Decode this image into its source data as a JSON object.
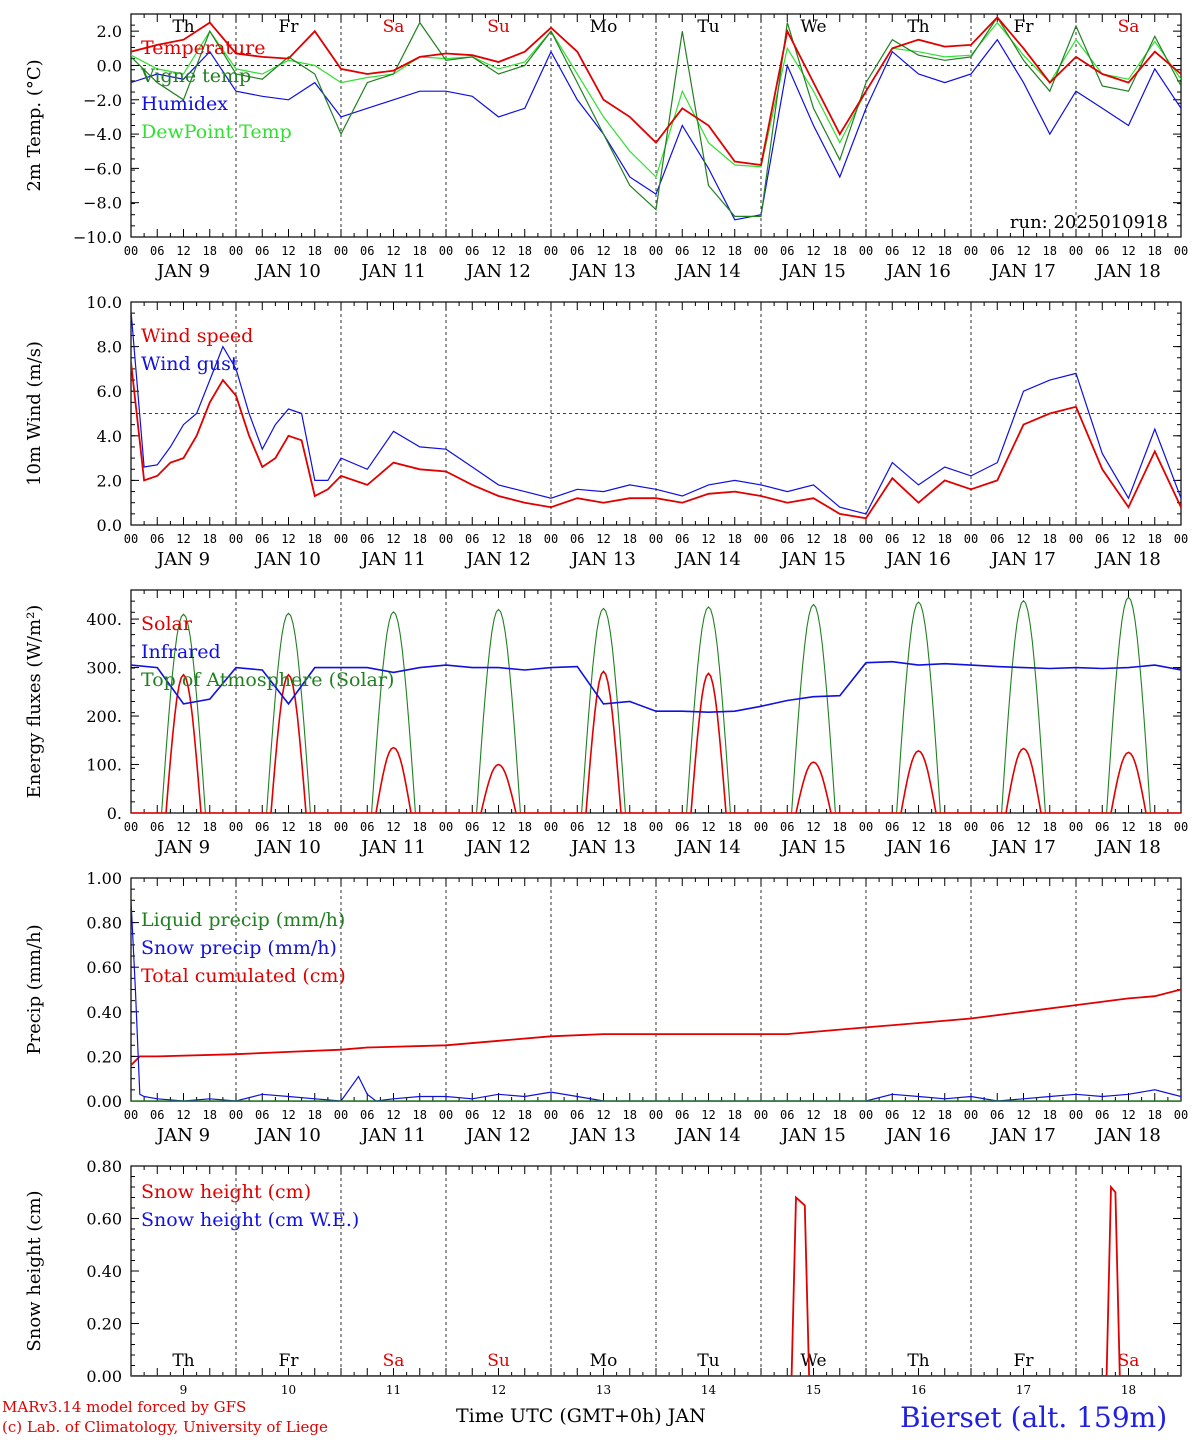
{
  "run_label": "run: 2025010918",
  "station_label": "Bierset (alt. 159m)",
  "credit_line1": "MARv3.14 model forced by GFS",
  "credit_line2": "(c) Lab. of Climatology, University of Liege",
  "xaxis_title": "Time UTC (GMT+0h) JAN",
  "hour_ticks": [
    "00",
    "06",
    "12",
    "18"
  ],
  "day_labels": [
    "JAN  9",
    "JAN 10",
    "JAN 11",
    "JAN 12",
    "JAN 13",
    "JAN 14",
    "JAN 15",
    "JAN 16",
    "JAN 17",
    "JAN 18"
  ],
  "weekdays": [
    "Th",
    "Fr",
    "Sa",
    "Su",
    "Mo",
    "Tu",
    "We",
    "Th",
    "Fr",
    "Sa"
  ],
  "weekday_colors": [
    "#000000",
    "#000000",
    "#e00000",
    "#e00000",
    "#000000",
    "#000000",
    "#000000",
    "#000000",
    "#000000",
    "#e00000"
  ],
  "day_numbers": [
    "9",
    "10",
    "11",
    "12",
    "13",
    "14",
    "15",
    "16",
    "17",
    "18"
  ],
  "chart_data": [
    {
      "type": "line",
      "ylabel": "2m Temp. (°C)",
      "ylim": [
        -10,
        3
      ],
      "yticks": [
        "2.0",
        "0.0",
        "−2.0",
        "−4.0",
        "−6.0",
        "−8.0",
        "−10.0"
      ],
      "yticks_values": [
        2,
        0,
        -2,
        -4,
        -6,
        -8,
        -10
      ],
      "hline": 0,
      "x_hours": [
        0,
        6,
        12,
        18,
        24,
        30,
        36,
        42,
        48,
        54,
        60,
        66,
        72,
        78,
        84,
        90,
        96,
        102,
        108,
        114,
        120,
        126,
        132,
        138,
        144,
        150,
        156,
        162,
        168,
        174,
        180,
        186,
        192,
        198,
        204,
        210,
        216,
        222,
        228,
        234,
        240
      ],
      "series": [
        {
          "name": "Temperature",
          "color": "#e00000",
          "values": [
            0.8,
            1.2,
            1.5,
            2.5,
            0.7,
            0.5,
            0.4,
            2.0,
            -0.2,
            -0.5,
            -0.3,
            0.5,
            0.7,
            0.6,
            0.2,
            0.8,
            2.2,
            0.8,
            -2.0,
            -3.0,
            -4.5,
            -2.5,
            -3.5,
            -5.6,
            -5.8,
            2.0,
            -1.0,
            -4.0,
            -1.5,
            1.0,
            1.5,
            1.1,
            1.2,
            2.8,
            1.0,
            -1.0,
            0.5,
            -0.5,
            -1.0,
            0.8,
            -0.5
          ]
        },
        {
          "name": "Vigne temp",
          "color": "#208020",
          "values": [
            0.5,
            -1.0,
            -2.0,
            2.0,
            -0.5,
            -0.8,
            0.5,
            -0.5,
            -4.0,
            -1.0,
            -0.5,
            2.5,
            0.3,
            0.5,
            -0.5,
            0.0,
            2.0,
            -1.0,
            -4.0,
            -7.0,
            -8.4,
            2.0,
            -7.0,
            -8.8,
            -8.8,
            2.5,
            -2.5,
            -5.5,
            -1.0,
            1.5,
            0.6,
            0.3,
            0.5,
            2.8,
            0.3,
            -1.5,
            2.3,
            -1.2,
            -1.5,
            1.7,
            -1.2
          ]
        },
        {
          "name": "Humidex",
          "color": "#1010e0",
          "values": [
            -1.0,
            -0.5,
            -0.8,
            0.8,
            -1.5,
            -1.8,
            -2.0,
            -1.0,
            -3.0,
            -2.5,
            -2.0,
            -1.5,
            -1.5,
            -1.8,
            -3.0,
            -2.5,
            0.8,
            -2.0,
            -4.0,
            -6.5,
            -7.5,
            -3.5,
            -6.0,
            -9.0,
            -8.7,
            0.0,
            -3.5,
            -6.5,
            -2.5,
            0.8,
            -0.5,
            -1.0,
            -0.5,
            1.5,
            -1.0,
            -4.0,
            -1.5,
            -2.5,
            -3.5,
            -0.2,
            -2.5
          ]
        },
        {
          "name": "DewPoint Temp",
          "color": "#30e030",
          "values": [
            0.6,
            -0.2,
            -0.5,
            2.0,
            -0.2,
            -0.5,
            0.3,
            0.0,
            -1.0,
            -0.7,
            -0.5,
            0.5,
            0.4,
            0.5,
            -0.2,
            0.2,
            2.0,
            -0.5,
            -3.0,
            -5.0,
            -6.5,
            -1.5,
            -4.5,
            -5.8,
            -5.9,
            1.0,
            -1.5,
            -4.5,
            -1.5,
            1.0,
            0.8,
            0.5,
            0.6,
            2.5,
            0.6,
            -1.0,
            1.5,
            -0.5,
            -0.8,
            1.4,
            -0.8
          ]
        }
      ]
    },
    {
      "type": "line",
      "ylabel": "10m Wind (m/s)",
      "ylim": [
        0,
        10
      ],
      "yticks": [
        "10.0",
        "8.0",
        "6.0",
        "4.0",
        "2.0",
        "0.0"
      ],
      "yticks_values": [
        10,
        8,
        6,
        4,
        2,
        0
      ],
      "hline": 5,
      "x_hours": [
        0,
        3,
        6,
        9,
        12,
        15,
        18,
        21,
        24,
        27,
        30,
        33,
        36,
        39,
        42,
        45,
        48,
        54,
        60,
        66,
        72,
        78,
        84,
        90,
        96,
        102,
        108,
        114,
        120,
        126,
        132,
        138,
        144,
        150,
        156,
        162,
        168,
        174,
        180,
        186,
        192,
        198,
        204,
        210,
        216,
        222,
        228,
        234,
        240
      ],
      "series": [
        {
          "name": "Wind speed",
          "color": "#e00000",
          "values": [
            7.3,
            2.0,
            2.2,
            2.8,
            3.0,
            4.0,
            5.5,
            6.5,
            5.8,
            4.0,
            2.6,
            3.0,
            4.0,
            3.8,
            1.3,
            1.6,
            2.2,
            1.8,
            2.8,
            2.5,
            2.4,
            1.8,
            1.3,
            1.0,
            0.8,
            1.2,
            1.0,
            1.2,
            1.2,
            1.0,
            1.4,
            1.5,
            1.3,
            1.0,
            1.2,
            0.5,
            0.3,
            2.1,
            1.0,
            2.0,
            1.6,
            2.0,
            4.5,
            5.0,
            5.3,
            2.5,
            0.8,
            3.3,
            0.8
          ]
        },
        {
          "name": "Wind gust",
          "color": "#1010e0",
          "values": [
            9.6,
            2.6,
            2.7,
            3.5,
            4.5,
            5.0,
            6.5,
            8.0,
            7.0,
            5.0,
            3.4,
            4.5,
            5.2,
            5.0,
            2.0,
            2.0,
            3.0,
            2.5,
            4.2,
            3.5,
            3.4,
            2.6,
            1.8,
            1.5,
            1.2,
            1.6,
            1.5,
            1.8,
            1.6,
            1.3,
            1.8,
            2.0,
            1.8,
            1.5,
            1.8,
            0.8,
            0.5,
            2.8,
            1.8,
            2.6,
            2.2,
            2.8,
            6.0,
            6.5,
            6.8,
            3.2,
            1.2,
            4.3,
            1.2
          ]
        }
      ]
    },
    {
      "type": "line",
      "ylabel": "Energy fluxes (W/m²)",
      "ylim": [
        0,
        460
      ],
      "yticks": [
        "400.",
        "300.",
        "200.",
        "100.",
        "0."
      ],
      "yticks_values": [
        400,
        300,
        200,
        100,
        0
      ],
      "days_solar_peak": [
        285,
        285,
        135,
        100,
        292,
        288,
        105,
        128,
        133,
        125
      ],
      "days_toa_peak": [
        410,
        412,
        415,
        420,
        422,
        425,
        430,
        435,
        438,
        445
      ],
      "series": [
        {
          "name": "Solar",
          "color": "#e00000"
        },
        {
          "name": "Infrared",
          "color": "#1010e0",
          "x_hours": [
            0,
            6,
            12,
            18,
            24,
            30,
            36,
            42,
            48,
            54,
            60,
            66,
            72,
            78,
            84,
            90,
            96,
            102,
            108,
            114,
            120,
            126,
            132,
            138,
            144,
            150,
            156,
            162,
            168,
            174,
            180,
            186,
            192,
            198,
            204,
            210,
            216,
            222,
            228,
            234,
            240
          ],
          "values": [
            305,
            300,
            225,
            235,
            300,
            295,
            225,
            300,
            300,
            300,
            290,
            300,
            305,
            300,
            300,
            295,
            300,
            302,
            225,
            230,
            210,
            210,
            208,
            210,
            220,
            232,
            240,
            242,
            310,
            312,
            305,
            308,
            305,
            302,
            300,
            298,
            300,
            298,
            300,
            305,
            295
          ]
        },
        {
          "name": "Top of Atmosphere (Solar)",
          "color": "#208020"
        }
      ]
    },
    {
      "type": "line",
      "ylabel": "Precip (mm/h)",
      "ylim": [
        0,
        1
      ],
      "yticks": [
        "1.00",
        "0.80",
        "0.60",
        "0.40",
        "0.20",
        "0.00"
      ],
      "yticks_values": [
        1,
        0.8,
        0.6,
        0.4,
        0.2,
        0
      ],
      "series": [
        {
          "name": "Liquid precip (mm/h)",
          "color": "#208020",
          "x_hours": [
            0,
            2,
            4,
            240
          ],
          "values": [
            0.0,
            0.0,
            0.0,
            0.0
          ]
        },
        {
          "name": "Snow precip (mm/h)",
          "color": "#1010e0",
          "x_hours": [
            0,
            1,
            2,
            3,
            6,
            12,
            18,
            24,
            30,
            36,
            42,
            48,
            52,
            54,
            56,
            60,
            66,
            72,
            78,
            84,
            90,
            96,
            102,
            108,
            114,
            120,
            126,
            132,
            138,
            144,
            150,
            156,
            162,
            168,
            174,
            180,
            186,
            192,
            198,
            204,
            210,
            216,
            222,
            228,
            234,
            240
          ],
          "values": [
            0.9,
            0.5,
            0.03,
            0.02,
            0.01,
            0.0,
            0.01,
            0.0,
            0.03,
            0.02,
            0.01,
            0.0,
            0.11,
            0.03,
            0.0,
            0.01,
            0.02,
            0.02,
            0.01,
            0.03,
            0.02,
            0.04,
            0.02,
            0.0,
            0.0,
            0.0,
            0.0,
            0.0,
            0.0,
            0.0,
            0.0,
            0.0,
            0.0,
            0.0,
            0.03,
            0.02,
            0.01,
            0.02,
            0.0,
            0.01,
            0.02,
            0.03,
            0.02,
            0.03,
            0.05,
            0.02
          ]
        },
        {
          "name": "Total cumulated (cm)",
          "color": "#e00000",
          "x_hours": [
            0,
            2,
            6,
            24,
            36,
            48,
            54,
            72,
            84,
            96,
            108,
            150,
            156,
            168,
            180,
            192,
            204,
            216,
            228,
            234,
            240
          ],
          "values": [
            0.16,
            0.2,
            0.2,
            0.21,
            0.22,
            0.23,
            0.24,
            0.25,
            0.27,
            0.29,
            0.3,
            0.3,
            0.31,
            0.33,
            0.35,
            0.37,
            0.4,
            0.43,
            0.46,
            0.47,
            0.5
          ]
        }
      ]
    },
    {
      "type": "line",
      "ylabel": "Snow height (cm)",
      "ylim": [
        0,
        0.8
      ],
      "yticks": [
        "0.80",
        "0.60",
        "0.40",
        "0.20",
        "0.00"
      ],
      "yticks_values": [
        0.8,
        0.6,
        0.4,
        0.2,
        0
      ],
      "series": [
        {
          "name": "Snow height (cm)",
          "color": "#e00000",
          "x_hours": [
            0,
            151,
            152,
            154,
            155,
            223,
            224,
            225,
            226,
            240
          ],
          "values": [
            0,
            0,
            0.68,
            0.65,
            0,
            0,
            0.72,
            0.7,
            0,
            0
          ]
        },
        {
          "name": "Snow height (cm W.E.)",
          "color": "#1010e0",
          "x_hours": [
            0,
            240
          ],
          "values": [
            0,
            0
          ]
        }
      ]
    }
  ]
}
